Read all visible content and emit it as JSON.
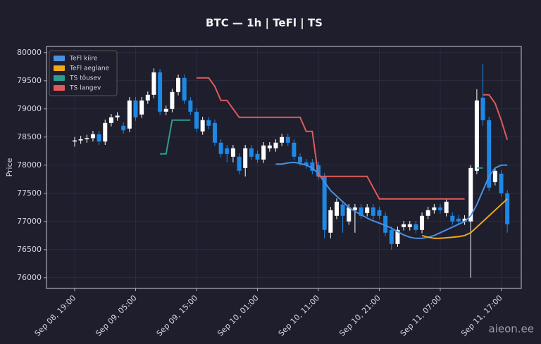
{
  "chart_data": {
    "type": "candlestick",
    "title": "BTC — 1h  |  TeFl  |  TS",
    "y_label": "Price",
    "watermark": "aieon.ee",
    "categories": [
      "Sep 08, 19:00",
      null,
      null,
      null,
      null,
      null,
      null,
      null,
      null,
      null,
      "Sep 09, 05:00",
      null,
      null,
      null,
      null,
      null,
      null,
      null,
      null,
      null,
      "Sep 09, 15:00",
      null,
      null,
      null,
      null,
      null,
      null,
      null,
      null,
      null,
      "Sep 10, 01:00",
      null,
      null,
      null,
      null,
      null,
      null,
      null,
      null,
      null,
      "Sep 10, 11:00",
      null,
      null,
      null,
      null,
      null,
      null,
      null,
      null,
      null,
      "Sep 10, 21:00",
      null,
      null,
      null,
      null,
      null,
      null,
      null,
      null,
      null,
      "Sep 11, 07:00",
      null,
      null,
      null,
      null,
      null,
      null,
      null,
      null,
      null,
      "Sep 11, 17:00",
      null
    ],
    "ohlc": {
      "open": [
        78420,
        78440,
        78460,
        78480,
        78550,
        78420,
        78750,
        78850,
        78700,
        78650,
        79150,
        78900,
        79150,
        79250,
        79650,
        78950,
        79000,
        79300,
        79550,
        79150,
        78950,
        78600,
        78800,
        78750,
        78400,
        78300,
        78150,
        78150,
        77950,
        78300,
        78200,
        78100,
        78300,
        78300,
        78400,
        78500,
        78400,
        78150,
        78050,
        78050,
        78000,
        77800,
        76800,
        77100,
        77300,
        77000,
        77200,
        77250,
        77150,
        77250,
        77200,
        77100,
        76850,
        76600,
        76900,
        76900,
        76950,
        76850,
        77100,
        77200,
        77250,
        77150,
        77100,
        77050,
        77000,
        77000,
        77900,
        79200,
        78800,
        77700,
        77850,
        77500
      ],
      "high": [
        78500,
        78520,
        78540,
        78610,
        78610,
        78810,
        78910,
        78940,
        78760,
        79210,
        79210,
        79210,
        79310,
        79720,
        79710,
        79060,
        79360,
        79610,
        79610,
        79210,
        79010,
        78860,
        78860,
        78810,
        78460,
        78360,
        78360,
        78210,
        78360,
        78360,
        78260,
        78410,
        78410,
        78460,
        78560,
        78560,
        78460,
        78210,
        78110,
        78110,
        78060,
        77860,
        77260,
        77410,
        77360,
        77310,
        77310,
        77310,
        77310,
        77310,
        77260,
        77160,
        76910,
        76910,
        77010,
        77010,
        77010,
        77160,
        77260,
        77310,
        77310,
        77410,
        77160,
        77110,
        77110,
        78000,
        79350,
        79800,
        78860,
        77960,
        77910,
        77560
      ],
      "low": [
        78330,
        78380,
        78400,
        78420,
        78360,
        78360,
        78690,
        78790,
        78560,
        78590,
        78790,
        78840,
        79090,
        79190,
        78890,
        78890,
        78940,
        79240,
        79090,
        78890,
        78590,
        78540,
        78640,
        78340,
        78140,
        78050,
        78050,
        77840,
        77800,
        78090,
        78040,
        78040,
        78240,
        78240,
        78340,
        78340,
        78090,
        77990,
        77940,
        77840,
        77740,
        76700,
        76700,
        77040,
        76800,
        76940,
        76800,
        77040,
        77090,
        77040,
        77040,
        76740,
        76500,
        76550,
        76840,
        76840,
        76790,
        76790,
        77040,
        77140,
        77140,
        77090,
        76940,
        76940,
        76940,
        76000,
        77840,
        78700,
        77540,
        77640,
        77440,
        76800
      ],
      "close": [
        78440,
        78460,
        78480,
        78550,
        78420,
        78750,
        78850,
        78880,
        78620,
        79150,
        78850,
        79150,
        79250,
        79650,
        78950,
        79000,
        79300,
        79550,
        79150,
        78950,
        78650,
        78800,
        78700,
        78400,
        78200,
        78200,
        78300,
        77900,
        78300,
        78150,
        78100,
        78350,
        78350,
        78400,
        78500,
        78400,
        78150,
        78050,
        78000,
        77900,
        77800,
        76850,
        77200,
        77350,
        77100,
        77250,
        77250,
        77100,
        77250,
        77100,
        77100,
        76800,
        76600,
        76850,
        76950,
        76950,
        76850,
        77100,
        77200,
        77250,
        77200,
        77350,
        77000,
        77000,
        77050,
        77950,
        79150,
        78800,
        77600,
        77900,
        77500,
        76950
      ],
      "up_color": "#ffffff",
      "down_color": "#1e88e5"
    },
    "series": [
      {
        "name": "TeFl kiire",
        "color": "#4a90e2",
        "values": [
          null,
          null,
          null,
          null,
          null,
          null,
          null,
          null,
          null,
          null,
          null,
          null,
          null,
          null,
          null,
          null,
          null,
          null,
          null,
          null,
          null,
          null,
          null,
          null,
          null,
          null,
          null,
          null,
          null,
          null,
          null,
          null,
          null,
          78020,
          78020,
          78040,
          78050,
          78030,
          78000,
          77950,
          77850,
          77700,
          77550,
          77450,
          77350,
          77250,
          77180,
          77120,
          77060,
          77010,
          76970,
          76930,
          76880,
          76820,
          76760,
          76720,
          76700,
          76700,
          76720,
          76750,
          76800,
          76850,
          76900,
          76950,
          77000,
          77100,
          77300,
          77550,
          77800,
          77950,
          78000,
          78000
        ]
      },
      {
        "name": "TeFl aeglane",
        "color": "#f0a81c",
        "values": [
          null,
          null,
          null,
          null,
          null,
          null,
          null,
          null,
          null,
          null,
          null,
          null,
          null,
          null,
          null,
          null,
          null,
          null,
          null,
          null,
          null,
          null,
          null,
          null,
          null,
          null,
          null,
          null,
          null,
          null,
          null,
          null,
          null,
          null,
          null,
          null,
          null,
          null,
          null,
          null,
          null,
          null,
          null,
          null,
          null,
          null,
          null,
          null,
          null,
          null,
          null,
          null,
          null,
          null,
          null,
          null,
          null,
          76750,
          76720,
          76700,
          76700,
          76710,
          76720,
          76730,
          76750,
          76800,
          76900,
          77000,
          77100,
          77200,
          77300,
          77400
        ]
      },
      {
        "name": "TS tõusev",
        "color": "#2a9d8f",
        "values": [
          null,
          null,
          null,
          null,
          null,
          null,
          null,
          null,
          null,
          null,
          null,
          null,
          null,
          null,
          78200,
          78200,
          78800,
          78800,
          78800,
          78800,
          null,
          null,
          null,
          null,
          null,
          null,
          null,
          null,
          null,
          null,
          null,
          null,
          null,
          null,
          null,
          null,
          null,
          null,
          null,
          null,
          null,
          null,
          null,
          null,
          null,
          null,
          null,
          null,
          null,
          null,
          null,
          null,
          null,
          null,
          null,
          null,
          null,
          null,
          null,
          null,
          null,
          null,
          null,
          null,
          null,
          null,
          77950,
          77950,
          null,
          null,
          null,
          null
        ]
      },
      {
        "name": "TS langev",
        "color": "#e05a5a",
        "values": [
          null,
          null,
          null,
          null,
          null,
          null,
          null,
          null,
          null,
          null,
          null,
          null,
          null,
          null,
          null,
          null,
          null,
          null,
          null,
          null,
          79550,
          79550,
          79550,
          79400,
          79150,
          79150,
          79000,
          78850,
          78850,
          78850,
          78850,
          78850,
          78850,
          78850,
          78850,
          78850,
          78850,
          78850,
          78600,
          78600,
          77800,
          77800,
          77800,
          77800,
          77800,
          77800,
          77800,
          77800,
          77800,
          77600,
          77400,
          77400,
          77400,
          77400,
          77400,
          77400,
          77400,
          77400,
          77400,
          77400,
          77400,
          77400,
          77400,
          77400,
          77400,
          null,
          null,
          79250,
          79250,
          79100,
          78800,
          78450
        ]
      }
    ],
    "ylim": [
      75810,
      80110
    ],
    "yticks": [
      76000,
      76500,
      77000,
      77500,
      78000,
      78500,
      79000,
      79500,
      80000
    ],
    "grid": true,
    "legend": "upper left"
  }
}
